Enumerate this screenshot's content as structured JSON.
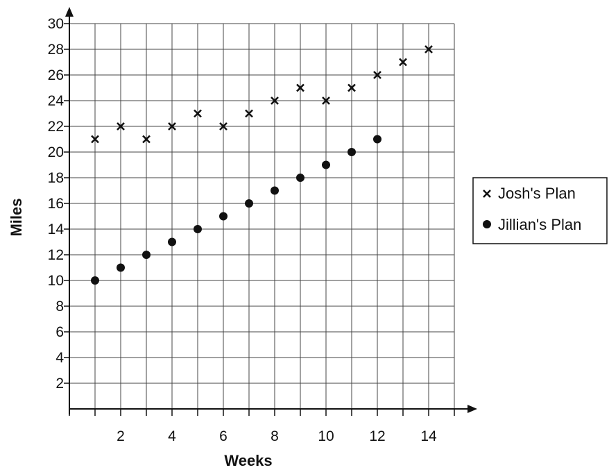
{
  "chart_data": {
    "type": "scatter",
    "xlabel": "Weeks",
    "ylabel": "Miles",
    "xlim": [
      0,
      15
    ],
    "ylim": [
      0,
      30
    ],
    "x_ticks": [
      2,
      4,
      6,
      8,
      10,
      12,
      14
    ],
    "x_tick_labels": [
      "2",
      "4",
      "6",
      "8",
      "10",
      "12",
      "14"
    ],
    "y_ticks": [
      2,
      4,
      6,
      8,
      10,
      12,
      14,
      16,
      18,
      20,
      22,
      24,
      26,
      28,
      30
    ],
    "y_tick_labels": [
      "2",
      "4",
      "6",
      "8",
      "10",
      "12",
      "14",
      "16",
      "18",
      "20",
      "22",
      "24",
      "26",
      "28",
      "30"
    ],
    "grid": true,
    "legend_position": "right",
    "series": [
      {
        "name": "Josh's Plan",
        "marker": "x",
        "color": "#111111",
        "x": [
          1,
          2,
          3,
          4,
          5,
          6,
          7,
          8,
          9,
          10,
          11,
          12,
          13,
          14
        ],
        "y": [
          21,
          22,
          21,
          22,
          23,
          22,
          23,
          24,
          25,
          24,
          25,
          26,
          27,
          28
        ]
      },
      {
        "name": "Jillian's Plan",
        "marker": "circle",
        "color": "#111111",
        "x": [
          1,
          2,
          3,
          4,
          5,
          6,
          7,
          8,
          9,
          10,
          11,
          12
        ],
        "y": [
          10,
          11,
          12,
          13,
          14,
          15,
          16,
          17,
          18,
          19,
          20,
          21
        ]
      }
    ]
  }
}
